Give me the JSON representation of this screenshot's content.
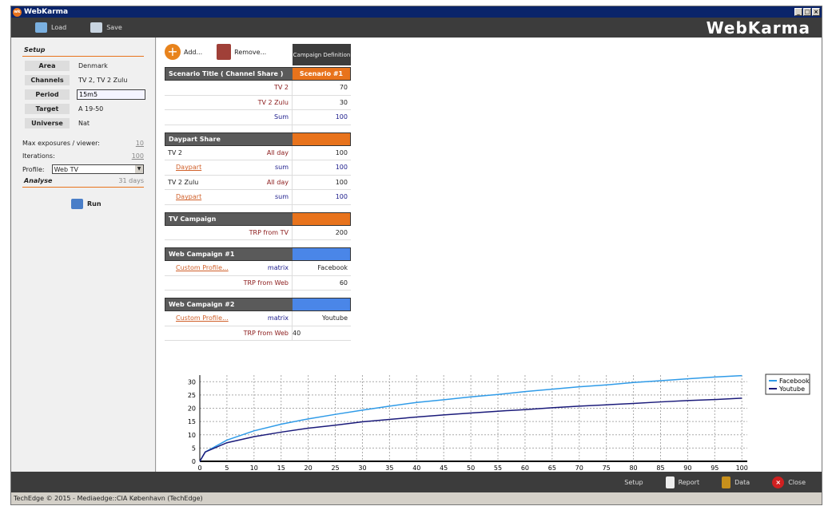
{
  "window": {
    "title": "WebKarma",
    "brand": "WebKarma"
  },
  "toolbar": {
    "load": "Load",
    "save": "Save"
  },
  "setup": {
    "title": "Setup",
    "fields": [
      {
        "k": "Area",
        "v": "Denmark"
      },
      {
        "k": "Channels",
        "v": "TV 2, TV 2 Zulu"
      },
      {
        "k": "Period",
        "v": "15m5"
      },
      {
        "k": "Target",
        "v": "A 19-50"
      },
      {
        "k": "Universe",
        "v": "Nat"
      }
    ],
    "max_exposures_label": "Max exposures / viewer:",
    "max_exposures": "10",
    "iterations_label": "Iterations:",
    "iterations": "100",
    "profile_label": "Profile:",
    "profile": "Web TV"
  },
  "analyse": {
    "title": "Analyse",
    "days": "31 days",
    "run": "Run"
  },
  "main": {
    "add": "Add...",
    "remove": "Remove...",
    "campaign_definition": "Campaign Definition"
  },
  "scenario": {
    "title": "Scenario Title ( Channel Share )",
    "name": "Scenario #1",
    "rows": [
      {
        "l": "TV 2",
        "v": "70"
      },
      {
        "l": "TV 2 Zulu",
        "v": "30"
      },
      {
        "l": "Sum",
        "v": "100"
      }
    ]
  },
  "daypart": {
    "title": "Daypart Share",
    "rows": [
      {
        "c": "TV 2",
        "l": "All day",
        "v": "100"
      },
      {
        "c": "Daypart",
        "l": "sum",
        "v": "100"
      },
      {
        "c": "TV 2 Zulu",
        "l": "All day",
        "v": "100"
      },
      {
        "c": "Daypart",
        "l": "sum",
        "v": "100"
      }
    ]
  },
  "tv": {
    "title": "TV Campaign",
    "label": "TRP from TV",
    "value": "200"
  },
  "web1": {
    "title": "Web Campaign #1",
    "link": "Custom Profile...",
    "matrix": "matrix",
    "site": "Facebook",
    "trp_label": "TRP from Web",
    "trp": "60"
  },
  "web2": {
    "title": "Web Campaign #2",
    "link": "Custom Profile...",
    "matrix": "matrix",
    "site": "Youtube",
    "trp_label": "TRP from Web",
    "trp": "40"
  },
  "colors": {
    "orange": "#e8731c",
    "blue": "#4a86e8",
    "facebook": "#2f9be8",
    "youtube": "#1a1a7a"
  },
  "footer": {
    "setup": "Setup",
    "report": "Report",
    "data": "Data",
    "close": "Close"
  },
  "status": "TechEdge © 2015 - Mediaedge::CIA København  (TechEdge)",
  "chart_data": {
    "type": "line",
    "xlim": [
      0,
      101
    ],
    "ylim": [
      0,
      32.5
    ],
    "grid": true,
    "legend": "top-right",
    "xticks": [
      0,
      5,
      10,
      15,
      20,
      25,
      30,
      35,
      40,
      45,
      50,
      55,
      60,
      65,
      70,
      75,
      80,
      85,
      90,
      95,
      100
    ],
    "yticks": [
      0,
      5,
      10,
      15,
      20,
      25,
      30
    ],
    "x": [
      0,
      1,
      5,
      10,
      15,
      20,
      25,
      30,
      35,
      40,
      45,
      50,
      55,
      60,
      65,
      70,
      75,
      80,
      85,
      90,
      95,
      100
    ],
    "series": [
      {
        "name": "Facebook",
        "values": [
          0,
          3.5,
          8,
          11.5,
          14,
          16,
          17.7,
          19.3,
          20.8,
          22.2,
          23.2,
          24.3,
          25.2,
          26.3,
          27.2,
          28.1,
          28.8,
          29.7,
          30.4,
          31.1,
          31.8,
          32.3
        ]
      },
      {
        "name": "Youtube",
        "values": [
          0,
          3.5,
          7,
          9.3,
          11,
          12.5,
          13.6,
          14.9,
          15.8,
          16.7,
          17.5,
          18.2,
          18.9,
          19.5,
          20.2,
          20.8,
          21.3,
          21.8,
          22.4,
          22.9,
          23.3,
          23.8
        ]
      }
    ]
  }
}
